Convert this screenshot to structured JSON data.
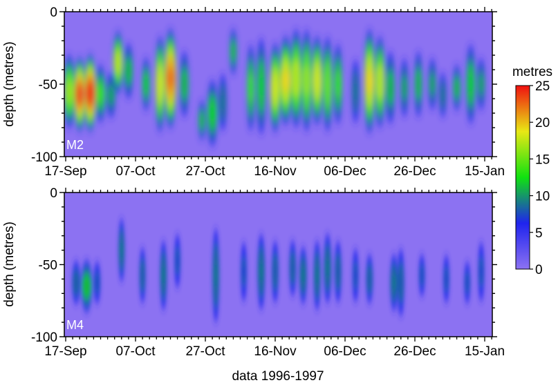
{
  "chart_data": [
    {
      "type": "heatmap",
      "panel_label": "M2",
      "ylabel": "depth (metres)",
      "ylim": [
        -100,
        0
      ],
      "yticks": [
        "-100",
        "-50",
        "0"
      ],
      "xticks": [
        "17-Sep",
        "07-Oct",
        "27-Oct",
        "16-Nov",
        "06-Dec",
        "26-Dec",
        "15-Jan"
      ],
      "bursts": [
        {
          "date": "1996-09-18",
          "width_days": 2.2,
          "peak": 16,
          "top": -28,
          "bottom": -82
        },
        {
          "date": "1996-09-21",
          "width_days": 2.2,
          "peak": 23,
          "top": -30,
          "bottom": -84
        },
        {
          "date": "1996-09-24",
          "width_days": 2.4,
          "peak": 24,
          "top": -28,
          "bottom": -84
        },
        {
          "date": "1996-09-27",
          "width_days": 1.8,
          "peak": 13,
          "top": -35,
          "bottom": -78
        },
        {
          "date": "1996-09-30",
          "width_days": 1.6,
          "peak": 10,
          "top": -40,
          "bottom": -75
        },
        {
          "date": "1996-10-02",
          "width_days": 1.8,
          "peak": 17,
          "top": -12,
          "bottom": -58
        },
        {
          "date": "1996-10-05",
          "width_days": 1.6,
          "peak": 11,
          "top": -20,
          "bottom": -62
        },
        {
          "date": "1996-10-10",
          "width_days": 1.2,
          "peak": 12,
          "top": -30,
          "bottom": -70
        },
        {
          "date": "1996-10-14",
          "width_days": 1.6,
          "peak": 18,
          "top": -15,
          "bottom": -85
        },
        {
          "date": "1996-10-17",
          "width_days": 2.4,
          "peak": 22,
          "top": -10,
          "bottom": -82
        },
        {
          "date": "1996-10-21",
          "width_days": 1.5,
          "peak": 11,
          "top": -25,
          "bottom": -75
        },
        {
          "date": "1996-10-26",
          "width_days": 1.0,
          "peak": 11,
          "top": -60,
          "bottom": -90
        },
        {
          "date": "1996-10-29",
          "width_days": 2.0,
          "peak": 12,
          "top": -45,
          "bottom": -95
        },
        {
          "date": "1996-11-01",
          "width_days": 1.2,
          "peak": 9,
          "top": -40,
          "bottom": -85
        },
        {
          "date": "1996-11-04",
          "width_days": 1.0,
          "peak": 11,
          "top": -10,
          "bottom": -45
        },
        {
          "date": "1996-11-09",
          "width_days": 1.2,
          "peak": 13,
          "top": -20,
          "bottom": -85
        },
        {
          "date": "1996-11-12",
          "width_days": 1.6,
          "peak": 12,
          "top": -15,
          "bottom": -88
        },
        {
          "date": "1996-11-16",
          "width_days": 2.0,
          "peak": 18,
          "top": -20,
          "bottom": -85
        },
        {
          "date": "1996-11-19",
          "width_days": 2.4,
          "peak": 19,
          "top": -15,
          "bottom": -80
        },
        {
          "date": "1996-11-22",
          "width_days": 2.2,
          "peak": 17,
          "top": -10,
          "bottom": -82
        },
        {
          "date": "1996-11-25",
          "width_days": 1.8,
          "peak": 16,
          "top": -10,
          "bottom": -85
        },
        {
          "date": "1996-11-28",
          "width_days": 2.0,
          "peak": 18,
          "top": -15,
          "bottom": -80
        },
        {
          "date": "1996-12-01",
          "width_days": 1.6,
          "peak": 15,
          "top": -15,
          "bottom": -85
        },
        {
          "date": "1996-12-04",
          "width_days": 1.4,
          "peak": 13,
          "top": -20,
          "bottom": -80
        },
        {
          "date": "1996-12-09",
          "width_days": 1.2,
          "peak": 9,
          "top": -30,
          "bottom": -80
        },
        {
          "date": "1996-12-13",
          "width_days": 2.0,
          "peak": 19,
          "top": -10,
          "bottom": -86
        },
        {
          "date": "1996-12-16",
          "width_days": 1.8,
          "peak": 17,
          "top": -15,
          "bottom": -82
        },
        {
          "date": "1996-12-19",
          "width_days": 1.6,
          "peak": 11,
          "top": -25,
          "bottom": -80
        },
        {
          "date": "1996-12-23",
          "width_days": 1.2,
          "peak": 10,
          "top": -30,
          "bottom": -75
        },
        {
          "date": "1996-12-27",
          "width_days": 1.2,
          "peak": 11,
          "top": -25,
          "bottom": -75
        },
        {
          "date": "1996-12-31",
          "width_days": 1.2,
          "peak": 10,
          "top": -30,
          "bottom": -70
        },
        {
          "date": "1997-01-03",
          "width_days": 1.0,
          "peak": 9,
          "top": -40,
          "bottom": -75
        },
        {
          "date": "1997-01-07",
          "width_days": 1.2,
          "peak": 11,
          "top": -35,
          "bottom": -70
        },
        {
          "date": "1997-01-11",
          "width_days": 1.6,
          "peak": 12,
          "top": -20,
          "bottom": -80
        },
        {
          "date": "1997-01-14",
          "width_days": 1.2,
          "peak": 10,
          "top": -30,
          "bottom": -70
        }
      ]
    },
    {
      "type": "heatmap",
      "panel_label": "M4",
      "xlabel": "data 1996-1997",
      "ylabel": "depth (metres)",
      "ylim": [
        -100,
        0
      ],
      "yticks": [
        "-100",
        "-50",
        "0"
      ],
      "xticks": [
        "17-Sep",
        "07-Oct",
        "27-Oct",
        "16-Nov",
        "06-Dec",
        "26-Dec",
        "15-Jan"
      ],
      "bursts": [
        {
          "date": "1996-09-20",
          "width_days": 1.4,
          "peak": 8,
          "top": -45,
          "bottom": -80
        },
        {
          "date": "1996-09-23",
          "width_days": 2.2,
          "peak": 11,
          "top": -45,
          "bottom": -85
        },
        {
          "date": "1996-09-26",
          "width_days": 1.0,
          "peak": 7,
          "top": -45,
          "bottom": -80
        },
        {
          "date": "1996-10-03",
          "width_days": 0.8,
          "peak": 9,
          "top": -15,
          "bottom": -65
        },
        {
          "date": "1996-10-09",
          "width_days": 0.8,
          "peak": 8,
          "top": -35,
          "bottom": -80
        },
        {
          "date": "1996-10-15",
          "width_days": 1.0,
          "peak": 9,
          "top": -30,
          "bottom": -85
        },
        {
          "date": "1996-10-19",
          "width_days": 0.8,
          "peak": 7,
          "top": -25,
          "bottom": -70
        },
        {
          "date": "1996-10-30",
          "width_days": 1.0,
          "peak": 9,
          "top": -20,
          "bottom": -95
        },
        {
          "date": "1996-11-07",
          "width_days": 0.8,
          "peak": 7,
          "top": -30,
          "bottom": -80
        },
        {
          "date": "1996-11-12",
          "width_days": 1.2,
          "peak": 9,
          "top": -25,
          "bottom": -85
        },
        {
          "date": "1996-11-16",
          "width_days": 1.0,
          "peak": 8,
          "top": -30,
          "bottom": -80
        },
        {
          "date": "1996-11-21",
          "width_days": 1.0,
          "peak": 8,
          "top": -30,
          "bottom": -75
        },
        {
          "date": "1996-11-24",
          "width_days": 1.2,
          "peak": 9,
          "top": -35,
          "bottom": -80
        },
        {
          "date": "1996-11-28",
          "width_days": 1.0,
          "peak": 9,
          "top": -30,
          "bottom": -85
        },
        {
          "date": "1996-12-01",
          "width_days": 1.2,
          "peak": 9,
          "top": -25,
          "bottom": -80
        },
        {
          "date": "1996-12-04",
          "width_days": 1.0,
          "peak": 8,
          "top": -30,
          "bottom": -80
        },
        {
          "date": "1996-12-09",
          "width_days": 0.8,
          "peak": 7,
          "top": -35,
          "bottom": -80
        },
        {
          "date": "1996-12-13",
          "width_days": 1.0,
          "peak": 8,
          "top": -40,
          "bottom": -80
        },
        {
          "date": "1996-12-20",
          "width_days": 1.2,
          "peak": 9,
          "top": -40,
          "bottom": -85
        },
        {
          "date": "1996-12-22",
          "width_days": 1.0,
          "peak": 8,
          "top": -35,
          "bottom": -90
        },
        {
          "date": "1996-12-28",
          "width_days": 0.8,
          "peak": 7,
          "top": -40,
          "bottom": -75
        },
        {
          "date": "1997-01-04",
          "width_days": 0.8,
          "peak": 7,
          "top": -40,
          "bottom": -80
        },
        {
          "date": "1997-01-10",
          "width_days": 0.8,
          "peak": 7,
          "top": -45,
          "bottom": -80
        },
        {
          "date": "1997-01-14",
          "width_days": 0.8,
          "peak": 7,
          "top": -30,
          "bottom": -80
        }
      ]
    }
  ],
  "colorbar": {
    "title": "metres",
    "range": [
      0,
      25
    ],
    "ticks": [
      "0",
      "5",
      "10",
      "15",
      "20",
      "25"
    ],
    "colors": [
      "#8c72f2",
      "#1f24ee",
      "#10e210",
      "#e8e815",
      "#f01010"
    ]
  }
}
